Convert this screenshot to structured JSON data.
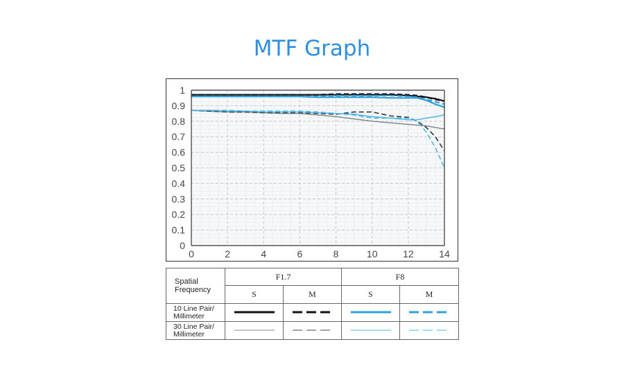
{
  "page": {
    "title": "MTF Graph"
  },
  "chart_data": {
    "type": "line",
    "title": "MTF Graph",
    "xlabel": "",
    "ylabel": "",
    "xlim": [
      0,
      14
    ],
    "ylim": [
      0,
      1
    ],
    "x_ticks": [
      "0",
      "2",
      "4",
      "6",
      "8",
      "10",
      "12",
      "14"
    ],
    "y_ticks": [
      "0",
      "0.1",
      "0.2",
      "0.3",
      "0.4",
      "0.5",
      "0.6",
      "0.7",
      "0.8",
      "0.9",
      "1"
    ],
    "grid": true,
    "series": [
      {
        "name": "F1.7 S 10 Line Pair/Millimeter",
        "color": "#111111",
        "dashed": false,
        "width": 2.2,
        "x": [
          0,
          1,
          2,
          3,
          4,
          5,
          6,
          7,
          8,
          9,
          10,
          11,
          12,
          12.5,
          13,
          13.5,
          14
        ],
        "y": [
          0.97,
          0.97,
          0.97,
          0.97,
          0.97,
          0.97,
          0.97,
          0.97,
          0.97,
          0.97,
          0.97,
          0.97,
          0.965,
          0.96,
          0.955,
          0.945,
          0.93
        ]
      },
      {
        "name": "F1.7 M 10 Line Pair/Millimeter",
        "color": "#111111",
        "dashed": true,
        "width": 2.2,
        "x": [
          0,
          1,
          2,
          3,
          4,
          5,
          6,
          7,
          8,
          9,
          10,
          11,
          12,
          12.5,
          13,
          13.5,
          14
        ],
        "y": [
          0.97,
          0.97,
          0.97,
          0.97,
          0.97,
          0.97,
          0.97,
          0.97,
          0.975,
          0.975,
          0.975,
          0.975,
          0.97,
          0.965,
          0.955,
          0.94,
          0.93
        ]
      },
      {
        "name": "F8 S 10 Line Pair/Millimeter",
        "color": "#2ea0db",
        "dashed": false,
        "width": 2.2,
        "x": [
          0,
          1,
          2,
          3,
          4,
          5,
          6,
          7,
          8,
          9,
          10,
          11,
          12,
          12.5,
          13,
          13.5,
          14
        ],
        "y": [
          0.96,
          0.96,
          0.96,
          0.96,
          0.96,
          0.96,
          0.96,
          0.955,
          0.955,
          0.955,
          0.955,
          0.95,
          0.95,
          0.95,
          0.935,
          0.91,
          0.89
        ]
      },
      {
        "name": "F8 M 10 Line Pair/Millimeter",
        "color": "#2ea0db",
        "dashed": true,
        "width": 2.2,
        "x": [
          0,
          1,
          2,
          3,
          4,
          5,
          6,
          7,
          8,
          9,
          10,
          11,
          12,
          12.5,
          13,
          13.5,
          14
        ],
        "y": [
          0.96,
          0.96,
          0.96,
          0.96,
          0.96,
          0.96,
          0.96,
          0.96,
          0.965,
          0.965,
          0.965,
          0.965,
          0.96,
          0.955,
          0.94,
          0.925,
          0.91
        ]
      },
      {
        "name": "F1.7 S 30 Line Pair/Millimeter",
        "color": "#888888",
        "dashed": false,
        "width": 1.5,
        "x": [
          0,
          1,
          2,
          3,
          4,
          5,
          6,
          7,
          8,
          9,
          10,
          11,
          12,
          12.5,
          13,
          13.5,
          14
        ],
        "y": [
          0.87,
          0.865,
          0.86,
          0.86,
          0.855,
          0.85,
          0.85,
          0.84,
          0.83,
          0.815,
          0.8,
          0.79,
          0.78,
          0.775,
          0.77,
          0.76,
          0.75
        ]
      },
      {
        "name": "F1.7 M 30 Line Pair/Millimeter",
        "color": "#333333",
        "dashed": true,
        "width": 1.6,
        "x": [
          0,
          1,
          2,
          3,
          4,
          5,
          6,
          7,
          8,
          9,
          10,
          11,
          12,
          12.5,
          13,
          13.5,
          14
        ],
        "y": [
          0.87,
          0.865,
          0.86,
          0.86,
          0.855,
          0.855,
          0.855,
          0.85,
          0.845,
          0.86,
          0.86,
          0.835,
          0.825,
          0.8,
          0.76,
          0.7,
          0.61
        ]
      },
      {
        "name": "F8 S 30 Line Pair/Millimeter",
        "color": "#4ab8e6",
        "dashed": false,
        "width": 1.5,
        "x": [
          0,
          1,
          2,
          3,
          4,
          5,
          6,
          7,
          8,
          9,
          10,
          11,
          12,
          12.5,
          13,
          13.5,
          14
        ],
        "y": [
          0.87,
          0.87,
          0.865,
          0.865,
          0.86,
          0.86,
          0.86,
          0.855,
          0.85,
          0.845,
          0.83,
          0.82,
          0.81,
          0.81,
          0.82,
          0.83,
          0.84
        ]
      },
      {
        "name": "F8 M 30 Line Pair/Millimeter",
        "color": "#4ab8e6",
        "dashed": true,
        "width": 1.6,
        "x": [
          0,
          1,
          2,
          3,
          4,
          5,
          6,
          7,
          8,
          9,
          10,
          11,
          12,
          12.5,
          13,
          13.5,
          14
        ],
        "y": [
          0.87,
          0.87,
          0.87,
          0.865,
          0.865,
          0.865,
          0.865,
          0.86,
          0.85,
          0.84,
          0.82,
          0.82,
          0.82,
          0.8,
          0.73,
          0.63,
          0.5
        ]
      }
    ]
  },
  "legend_table": {
    "header_label": [
      "Spatial",
      "Frequency"
    ],
    "apertures": [
      "F1.7",
      "F8"
    ],
    "sm": [
      "S",
      "M",
      "S",
      "M"
    ],
    "rows": [
      {
        "label": [
          "10 Line Pair/",
          "Millimeter"
        ]
      },
      {
        "label": [
          "30 Line Pair/",
          "Millimeter"
        ]
      }
    ]
  }
}
